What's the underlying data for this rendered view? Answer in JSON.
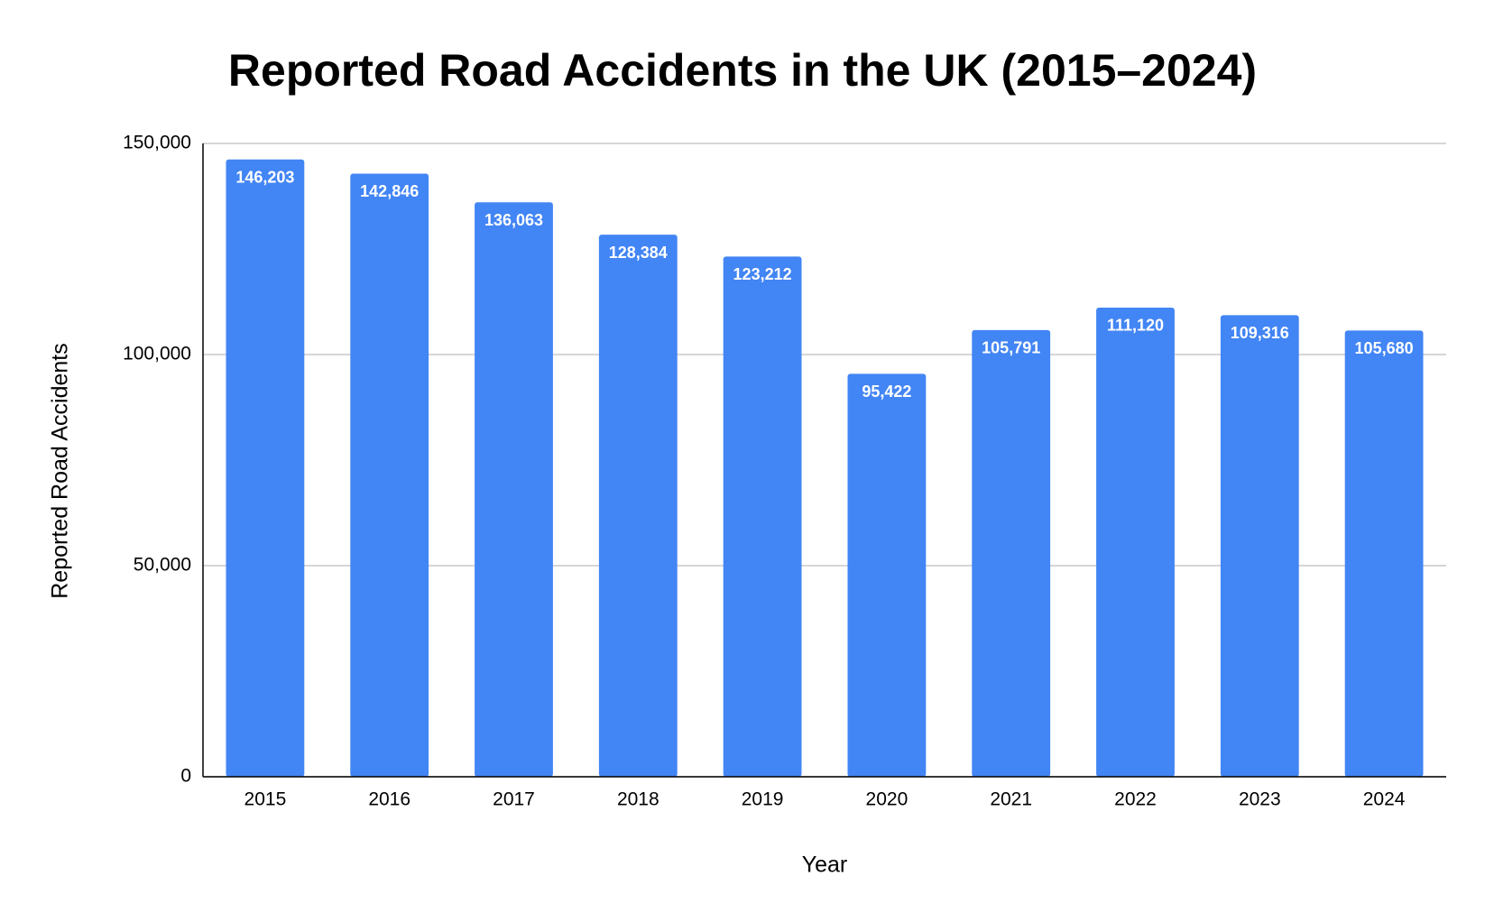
{
  "chart_data": {
    "type": "bar",
    "title": "Reported Road Accidents in the UK (2015–2024)",
    "x_label": "Year",
    "y_label": "Reported Road Accidents",
    "categories": [
      "2015",
      "2016",
      "2017",
      "2018",
      "2019",
      "2020",
      "2021",
      "2022",
      "2023",
      "2024"
    ],
    "values": [
      146203,
      142846,
      136063,
      128384,
      123212,
      95422,
      105791,
      111120,
      109316,
      105680
    ],
    "value_labels": [
      "146,203",
      "142,846",
      "136,063",
      "128,384",
      "123,212",
      "95,422",
      "105,791",
      "111,120",
      "109,316",
      "105,680"
    ],
    "color": "#4285f4",
    "ylim": [
      0,
      150000
    ],
    "yticks": [
      0,
      {
        "value": 50000,
        "label": "50,000"
      },
      {
        "value": 100000,
        "label": "100,000"
      },
      {
        "value": 150000,
        "label": "150,000"
      }
    ],
    "grid": true
  }
}
